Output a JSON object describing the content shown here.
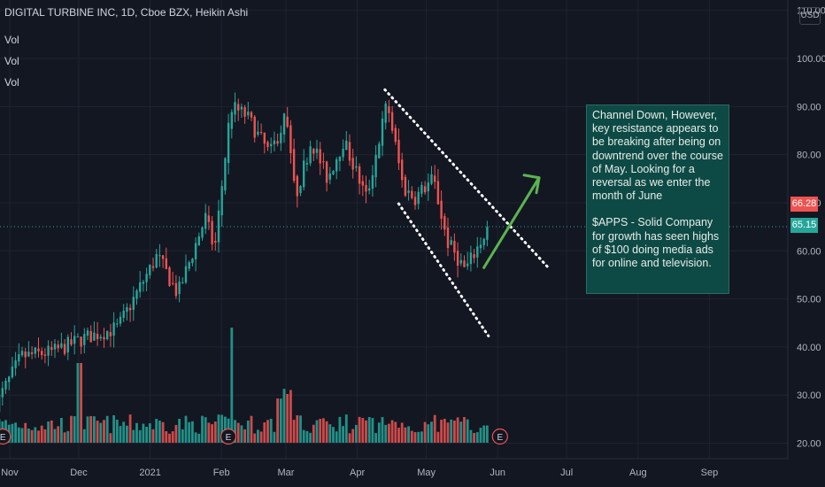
{
  "header": {
    "title": "DIGITAL TURBINE INC, 1D, Cboe BZX, Heikin Ashi",
    "indicators": [
      "Vol",
      "Vol",
      "Vol"
    ],
    "currency": "USD"
  },
  "price_tags": {
    "high_value": "66.28",
    "current_value": "65.15",
    "high_color": "#ef5350",
    "current_color": "#26a69a"
  },
  "note": {
    "paragraph1": "Channel Down, However, key resistance appears to be breaking after being on downtrend over the course of May.  Looking for a reversal as we enter the month of June",
    "paragraph2": "$APPS - Solid Company for growth has seen highs of $100 doing media ads for online and television."
  },
  "earnings_marker": "E",
  "colors": {
    "background": "#131722",
    "up": "#26a69a",
    "down": "#ef5350",
    "arrow": "#5bb450",
    "channel": "#ffffff"
  },
  "chart_data": {
    "type": "candlestick",
    "style": "Heikin Ashi",
    "symbol": "DIGITAL TURBINE INC",
    "interval": "1D",
    "exchange": "Cboe BZX",
    "ylim": [
      17.5,
      110
    ],
    "y_ticks": [
      "20.00",
      "30.00",
      "40.00",
      "50.00",
      "60.00",
      "70.00",
      "80.00",
      "90.00",
      "100.00",
      "110.00"
    ],
    "x_ticks": [
      "Nov",
      "Dec",
      "2021",
      "Feb",
      "Mar",
      "Apr",
      "May",
      "Jun",
      "Jul",
      "Aug",
      "Sep"
    ],
    "x_tick_dates": [
      "2020-11-01",
      "2020-12-01",
      "2021-01-01",
      "2021-02-01",
      "2021-03-01",
      "2021-04-01",
      "2021-05-01",
      "2021-06-01",
      "2021-07-01",
      "2021-08-01",
      "2021-09-01"
    ],
    "close_path": [
      [
        "2020-10-26",
        28
      ],
      [
        "2020-11-06",
        38
      ],
      [
        "2020-11-20",
        39
      ],
      [
        "2020-12-04",
        42
      ],
      [
        "2020-12-18",
        44
      ],
      [
        "2021-01-04",
        59
      ],
      [
        "2021-01-13",
        51
      ],
      [
        "2021-01-25",
        67
      ],
      [
        "2021-01-29",
        60
      ],
      [
        "2021-02-05",
        90
      ],
      [
        "2021-02-12",
        88
      ],
      [
        "2021-02-22",
        80
      ],
      [
        "2021-03-01",
        88
      ],
      [
        "2021-03-05",
        71
      ],
      [
        "2021-03-12",
        83
      ],
      [
        "2021-03-19",
        75
      ],
      [
        "2021-03-26",
        83
      ],
      [
        "2021-04-05",
        71
      ],
      [
        "2021-04-14",
        91
      ],
      [
        "2021-04-21",
        73
      ],
      [
        "2021-04-26",
        71
      ],
      [
        "2021-05-04",
        75
      ],
      [
        "2021-05-10",
        62
      ],
      [
        "2021-05-18",
        56
      ],
      [
        "2021-05-28",
        65
      ]
    ],
    "channel_upper": [
      [
        "2021-04-13",
        93.5
      ],
      [
        "2021-06-23",
        56.5
      ]
    ],
    "channel_lower": [
      [
        "2021-04-19",
        69.8
      ],
      [
        "2021-05-28",
        42.3
      ]
    ],
    "arrow": {
      "from": [
        "2021-05-26",
        56.5
      ],
      "to": [
        "2021-06-19",
        75.2
      ]
    },
    "price_labels": [
      66.28,
      65.15
    ],
    "earnings_events": [
      "2020-10-29",
      "2021-02-04",
      "2021-06-02"
    ],
    "volume_note": "volume bars scaled in lower pane"
  }
}
